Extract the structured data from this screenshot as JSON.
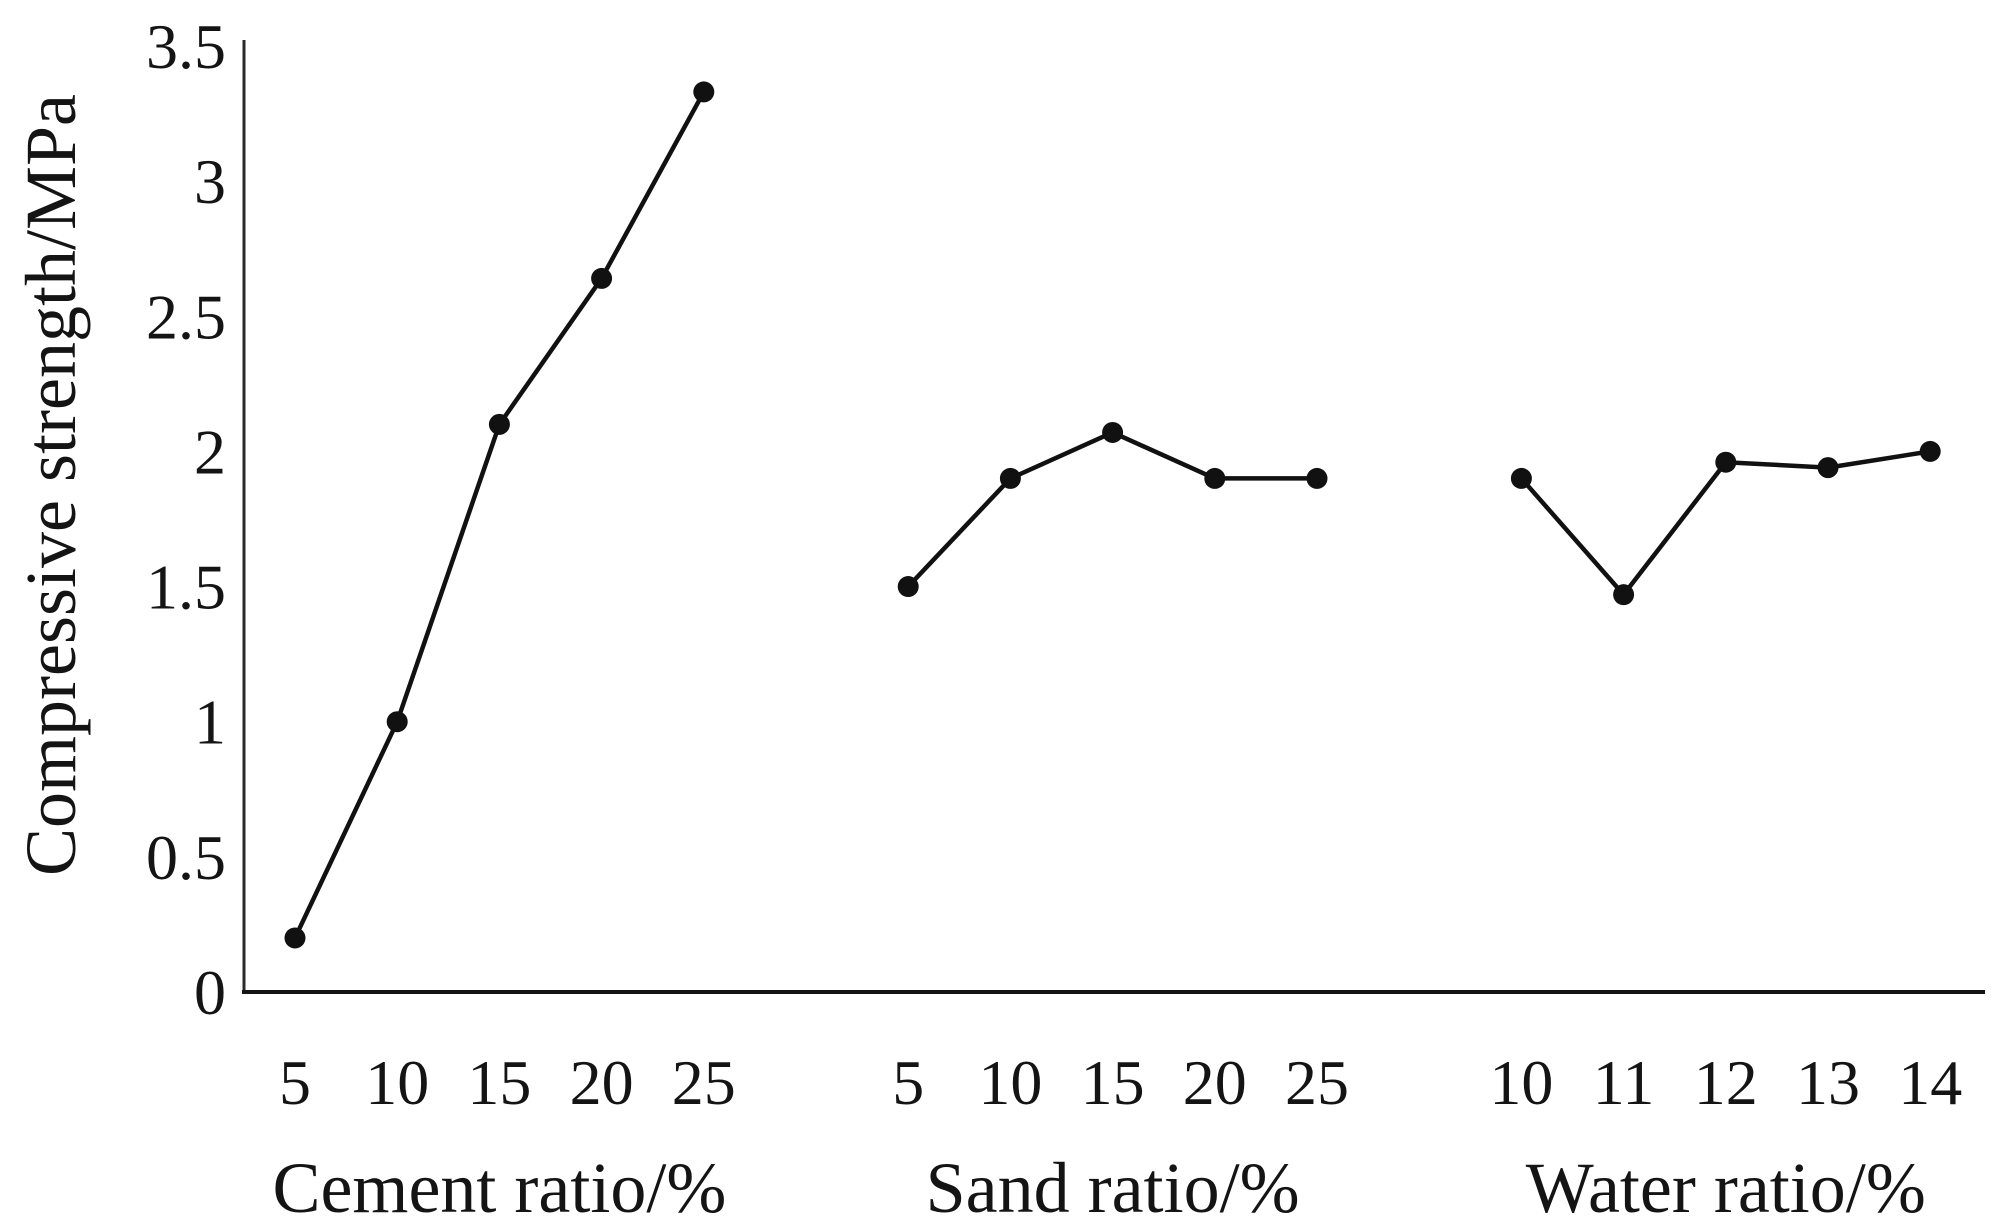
{
  "colors": {
    "ink": "#141414",
    "line": "#111111",
    "marker": "#111111",
    "background": "#ffffff"
  },
  "chart_data": {
    "type": "line",
    "title": "",
    "ylabel": "Compressive strength/MPa",
    "xlabel": "",
    "ylim": [
      0,
      3.5
    ],
    "grid": false,
    "legend": false,
    "marker": "filled-circle",
    "yticks": {
      "values": [
        0,
        0.5,
        1,
        1.5,
        2,
        2.5,
        3,
        3.5
      ],
      "labels": [
        "0",
        "0.5",
        "1",
        "1.5",
        "2",
        "2.5",
        "3",
        "3.5"
      ]
    },
    "groups": [
      {
        "name": "cement",
        "xlabel": "Cement ratio/%",
        "categories": [
          "5",
          "10",
          "15",
          "20",
          "25"
        ],
        "values": [
          0.2,
          1.0,
          2.1,
          2.64,
          3.33
        ]
      },
      {
        "name": "sand",
        "xlabel": "Sand ratio/%",
        "categories": [
          "5",
          "10",
          "15",
          "20",
          "25"
        ],
        "values": [
          1.5,
          1.9,
          2.07,
          1.9,
          1.9
        ]
      },
      {
        "name": "water",
        "xlabel": "Water ratio/%",
        "categories": [
          "10",
          "11",
          "12",
          "13",
          "14"
        ],
        "values": [
          1.9,
          1.47,
          1.96,
          1.94,
          2.0
        ]
      }
    ]
  }
}
